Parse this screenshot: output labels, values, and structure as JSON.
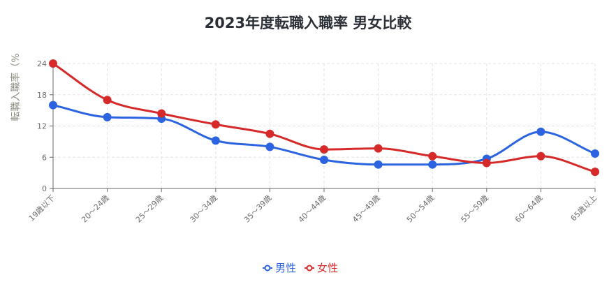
{
  "chart_data": {
    "type": "line",
    "title": "2023年度転職入職率 男女比較",
    "xlabel": "",
    "ylabel": "転職入職率（%",
    "categories": [
      "19歳以下",
      "20〜24歳",
      "25〜29歳",
      "30〜34歳",
      "35〜39歳",
      "40〜44歳",
      "45〜49歳",
      "50〜54歳",
      "55〜59歳",
      "60〜64歳",
      "65歳以上"
    ],
    "ylim": [
      0,
      24
    ],
    "yticks": [
      "0",
      "6",
      "12",
      "18",
      "24"
    ],
    "grid": true,
    "legend_position": "bottom-center",
    "series": [
      {
        "name": "男性",
        "color": "#2b63e0",
        "values": [
          16.0,
          13.7,
          13.4,
          9.2,
          8.0,
          5.5,
          4.6,
          4.6,
          5.7,
          10.9,
          6.7
        ]
      },
      {
        "name": "女性",
        "color": "#d62a2a",
        "values": [
          24.0,
          17.0,
          14.4,
          12.3,
          10.5,
          7.5,
          7.7,
          6.2,
          4.9,
          6.2,
          3.2
        ]
      }
    ]
  }
}
